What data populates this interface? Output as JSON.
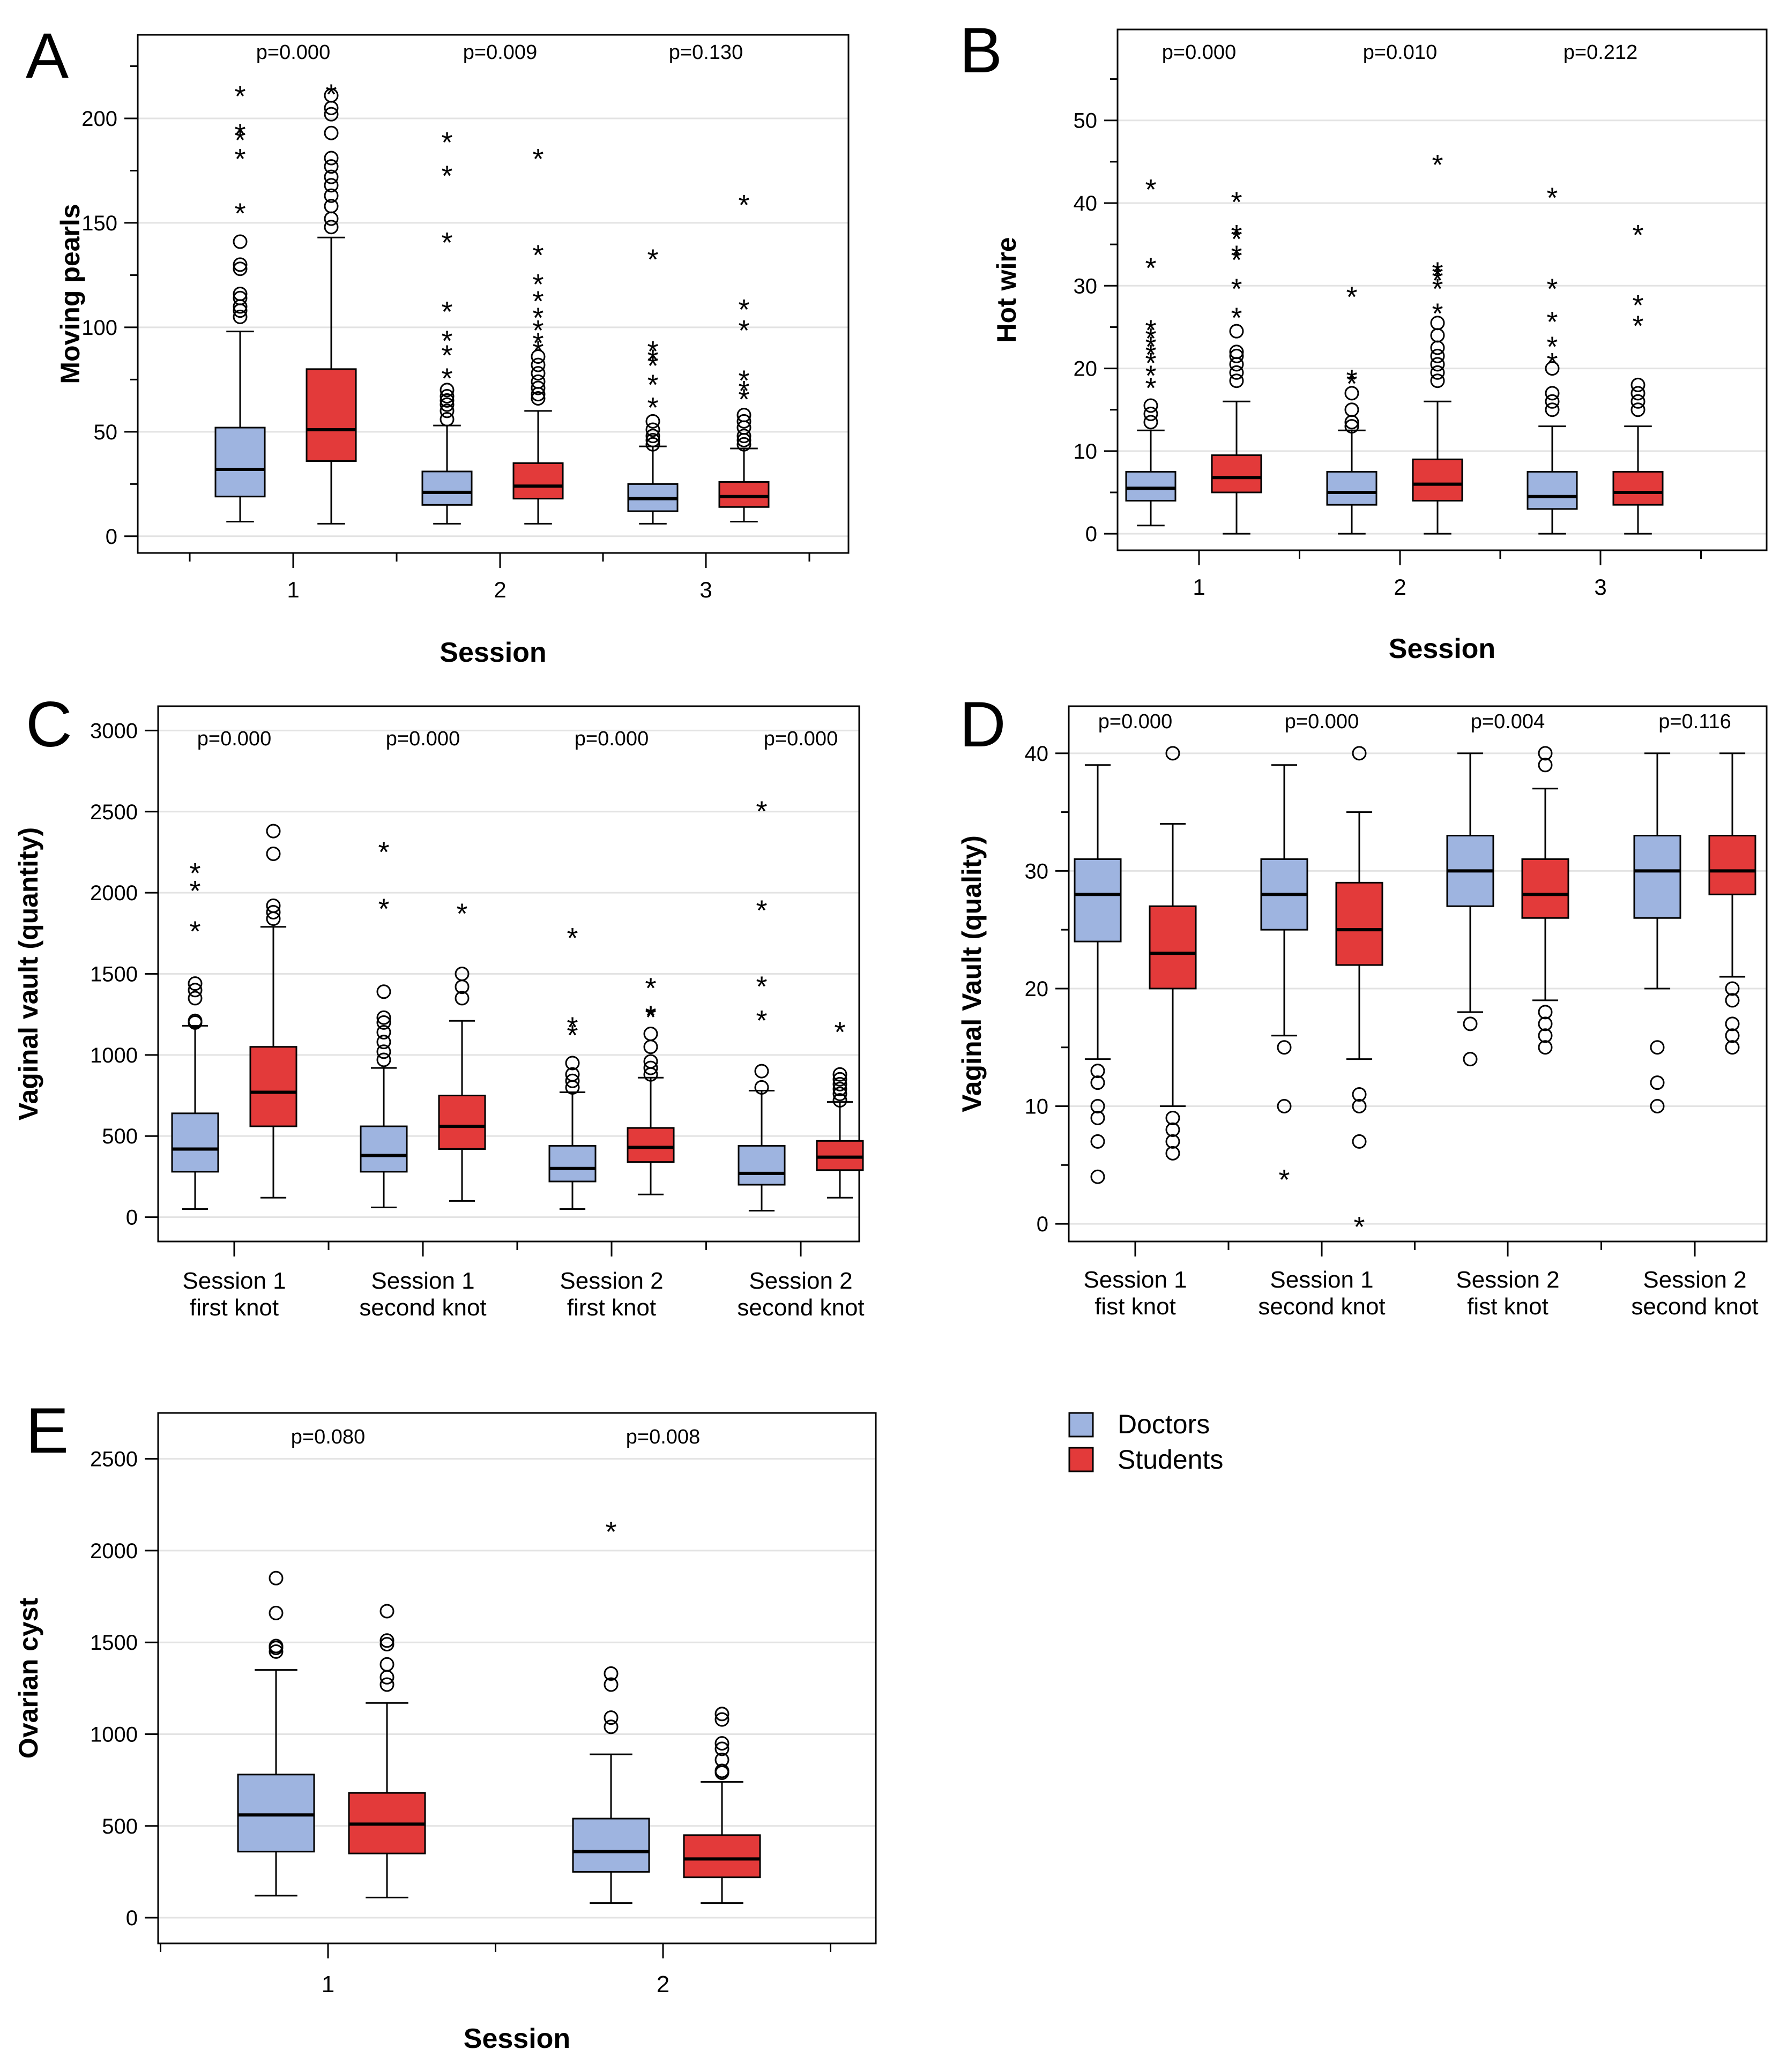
{
  "colors": {
    "doctors": "#9eb4e0",
    "students": "#e33a3a",
    "stroke": "#000000",
    "grid": "#e3e3e3"
  },
  "legend": {
    "items": [
      {
        "label": "Doctors",
        "color": "#9eb4e0"
      },
      {
        "label": "Students",
        "color": "#e33a3a"
      }
    ]
  },
  "chart_data": [
    {
      "panel": "A",
      "type": "boxplot",
      "ylabel": "Moving pearls",
      "xlabel": "Session",
      "ylim": [
        -8,
        240
      ],
      "yticks": [
        0,
        50,
        100,
        150,
        200
      ],
      "yminor": [
        25,
        75,
        125,
        175,
        225
      ],
      "grid": true,
      "categories": [
        "1",
        "2",
        "3"
      ],
      "pvalues": [
        "p=0.000",
        "p=0.009",
        "p=0.130"
      ],
      "boxes": [
        {
          "group": "Doctors",
          "cat": 0,
          "lo": 7,
          "q1": 19,
          "med": 32,
          "q3": 52,
          "hi": 98,
          "circles": [
            105,
            108,
            110,
            114,
            116,
            128,
            130,
            141
          ],
          "stars": [
            156,
            182,
            191,
            194,
            212
          ]
        },
        {
          "group": "Students",
          "cat": 0,
          "lo": 6,
          "q1": 36,
          "med": 51,
          "q3": 80,
          "hi": 143,
          "circles": [
            148,
            152,
            158,
            163,
            168,
            172,
            177,
            181,
            193,
            202,
            205,
            211
          ],
          "stars": [
            213
          ]
        },
        {
          "group": "Doctors",
          "cat": 1,
          "lo": 6,
          "q1": 15,
          "med": 21,
          "q3": 31,
          "hi": 53,
          "circles": [
            56,
            60,
            63,
            65,
            67,
            70
          ],
          "stars": [
            77,
            88,
            95,
            109,
            142,
            174,
            190
          ]
        },
        {
          "group": "Students",
          "cat": 1,
          "lo": 6,
          "q1": 18,
          "med": 24,
          "q3": 35,
          "hi": 60,
          "circles": [
            66,
            68,
            71,
            74,
            78,
            82,
            86
          ],
          "stars": [
            90,
            94,
            100,
            106,
            114,
            122,
            136,
            182
          ]
        },
        {
          "group": "Doctors",
          "cat": 2,
          "lo": 6,
          "q1": 12,
          "med": 18,
          "q3": 25,
          "hi": 43,
          "circles": [
            44,
            46,
            48,
            51,
            55
          ],
          "stars": [
            63,
            74,
            83,
            86,
            90,
            134
          ]
        },
        {
          "group": "Students",
          "cat": 2,
          "lo": 7,
          "q1": 14,
          "med": 19,
          "q3": 26,
          "hi": 42,
          "circles": [
            44,
            46,
            48,
            52,
            55,
            58
          ],
          "stars": [
            67,
            71,
            76,
            100,
            110,
            160
          ]
        }
      ]
    },
    {
      "panel": "B",
      "type": "boxplot",
      "ylabel": "Hot wire",
      "xlabel": "Session",
      "ylim": [
        -2,
        61
      ],
      "yticks": [
        0,
        10,
        20,
        30,
        40,
        50
      ],
      "yminor": [
        5,
        15,
        25,
        35,
        45,
        55
      ],
      "grid": true,
      "categories": [
        "1",
        "2",
        "3"
      ],
      "pvalues": [
        "p=0.000",
        "p=0.010",
        "p=0.212"
      ],
      "boxes": [
        {
          "group": "Doctors",
          "cat": 0,
          "lo": 1,
          "q1": 4,
          "med": 5.5,
          "q3": 7.5,
          "hi": 12.5,
          "circles": [
            13.5,
            14.5,
            15.5
          ],
          "stars": [
            18,
            19.5,
            21,
            22,
            23,
            24,
            25,
            32.5,
            42
          ]
        },
        {
          "group": "Students",
          "cat": 0,
          "lo": 0,
          "q1": 5,
          "med": 6.8,
          "q3": 9.5,
          "hi": 16,
          "circles": [
            18.5,
            19.5,
            20.5,
            21.5,
            22,
            24.5
          ],
          "stars": [
            26.5,
            30,
            33.5,
            34,
            36,
            36.5,
            40.5
          ]
        },
        {
          "group": "Doctors",
          "cat": 1,
          "lo": 0,
          "q1": 3.5,
          "med": 5,
          "q3": 7.5,
          "hi": 12.5,
          "circles": [
            13,
            13.5,
            15,
            17
          ],
          "stars": [
            18.5,
            29,
            19
          ]
        },
        {
          "group": "Students",
          "cat": 1,
          "lo": 0,
          "q1": 4,
          "med": 6,
          "q3": 9,
          "hi": 16,
          "circles": [
            18.5,
            19.5,
            20.5,
            21.5,
            22.5,
            24,
            25.5
          ],
          "stars": [
            27,
            30,
            31,
            31.5,
            32,
            45
          ]
        },
        {
          "group": "Doctors",
          "cat": 2,
          "lo": 0,
          "q1": 3,
          "med": 4.5,
          "q3": 7.5,
          "hi": 13,
          "circles": [
            15,
            16,
            17,
            20
          ],
          "stars": [
            21,
            23,
            26,
            30,
            41
          ]
        },
        {
          "group": "Students",
          "cat": 2,
          "lo": 0,
          "q1": 3.5,
          "med": 5,
          "q3": 7.5,
          "hi": 13,
          "circles": [
            15,
            16,
            17,
            18
          ],
          "stars": [
            25.5,
            28,
            36.5
          ]
        }
      ]
    },
    {
      "panel": "C",
      "type": "boxplot",
      "ylabel": "Vaginal vault (quantity)",
      "xlabel": "",
      "ylim": [
        -150,
        3150
      ],
      "yticks": [
        0,
        500,
        1000,
        1500,
        2000,
        2500,
        3000
      ],
      "yminor": [],
      "grid": true,
      "categories": [
        "Session 1\nfirst knot",
        "Session 1\nsecond knot",
        "Session 2\nfirst knot",
        "Session 2\nsecond knot"
      ],
      "pvalues": [
        "p=0.000",
        "p=0.000",
        "p=0.000",
        "p=0.000"
      ],
      "boxes": [
        {
          "group": "Doctors",
          "cat": 0,
          "lo": 50,
          "q1": 280,
          "med": 420,
          "q3": 640,
          "hi": 1180,
          "circles": [
            1200,
            1210,
            1350,
            1400,
            1440
          ],
          "stars": [
            1780,
            2030,
            2140
          ]
        },
        {
          "group": "Students",
          "cat": 0,
          "lo": 120,
          "q1": 560,
          "med": 770,
          "q3": 1050,
          "hi": 1790,
          "circles": [
            1840,
            1880,
            1920,
            2240,
            2380
          ],
          "stars": []
        },
        {
          "group": "Doctors",
          "cat": 1,
          "lo": 60,
          "q1": 280,
          "med": 380,
          "q3": 560,
          "hi": 920,
          "circles": [
            970,
            1020,
            1080,
            1140,
            1200,
            1230,
            1390
          ],
          "stars": [
            1920,
            2270
          ]
        },
        {
          "group": "Students",
          "cat": 1,
          "lo": 100,
          "q1": 420,
          "med": 560,
          "q3": 750,
          "hi": 1210,
          "circles": [
            1350,
            1420,
            1500
          ],
          "stars": [
            1890
          ]
        },
        {
          "group": "Doctors",
          "cat": 2,
          "lo": 50,
          "q1": 220,
          "med": 300,
          "q3": 440,
          "hi": 770,
          "circles": [
            800,
            840,
            880,
            950
          ],
          "stars": [
            1140,
            1190,
            1740
          ]
        },
        {
          "group": "Students",
          "cat": 2,
          "lo": 140,
          "q1": 340,
          "med": 430,
          "q3": 550,
          "hi": 860,
          "circles": [
            880,
            920,
            960,
            1050,
            1130
          ],
          "stars": [
            1250,
            1260,
            1430
          ]
        },
        {
          "group": "Doctors",
          "cat": 3,
          "lo": 40,
          "q1": 200,
          "med": 270,
          "q3": 440,
          "hi": 780,
          "circles": [
            800,
            900
          ],
          "stars": [
            1230,
            1440,
            1910,
            2520
          ]
        },
        {
          "group": "Students",
          "cat": 3,
          "lo": 120,
          "q1": 290,
          "med": 370,
          "q3": 470,
          "hi": 710,
          "circles": [
            720,
            760,
            790,
            820,
            850,
            880
          ],
          "stars": [
            1160
          ]
        }
      ]
    },
    {
      "panel": "D",
      "type": "boxplot",
      "ylabel": "Vaginal Vault (quality)",
      "xlabel": "",
      "ylim": [
        -1.5,
        44
      ],
      "yticks": [
        0,
        10,
        20,
        30,
        40
      ],
      "yminor": [
        5,
        15,
        25,
        35
      ],
      "grid": true,
      "categories": [
        "Session 1\nfist knot",
        "Session 1\nsecond knot",
        "Session 2\nfist knot",
        "Session 2\nsecond knot"
      ],
      "pvalues": [
        "p=0.000",
        "p=0.000",
        "p=0.004",
        "p=0.116"
      ],
      "boxes": [
        {
          "group": "Doctors",
          "cat": 0,
          "lo": 14,
          "q1": 24,
          "med": 28,
          "q3": 31,
          "hi": 39,
          "circles": [
            4,
            7,
            9,
            10,
            12,
            13
          ],
          "stars": []
        },
        {
          "group": "Students",
          "cat": 0,
          "lo": 10,
          "q1": 20,
          "med": 23,
          "q3": 27,
          "hi": 34,
          "circles": [
            6,
            7,
            8,
            9,
            40
          ],
          "stars": []
        },
        {
          "group": "Doctors",
          "cat": 1,
          "lo": 16,
          "q1": 25,
          "med": 28,
          "q3": 31,
          "hi": 39,
          "circles": [
            10,
            15
          ],
          "stars": [
            4
          ]
        },
        {
          "group": "Students",
          "cat": 1,
          "lo": 14,
          "q1": 22,
          "med": 25,
          "q3": 29,
          "hi": 35,
          "circles": [
            7,
            10,
            11,
            40
          ],
          "stars": [
            0
          ]
        },
        {
          "group": "Doctors",
          "cat": 2,
          "lo": 18,
          "q1": 27,
          "med": 30,
          "q3": 33,
          "hi": 40,
          "circles": [
            14,
            17
          ],
          "stars": []
        },
        {
          "group": "Students",
          "cat": 2,
          "lo": 19,
          "q1": 26,
          "med": 28,
          "q3": 31,
          "hi": 37,
          "circles": [
            15,
            16,
            17,
            18,
            39,
            40
          ],
          "stars": []
        },
        {
          "group": "Doctors",
          "cat": 3,
          "lo": 20,
          "q1": 26,
          "med": 30,
          "q3": 33,
          "hi": 40,
          "circles": [
            10,
            12,
            15
          ],
          "stars": []
        },
        {
          "group": "Students",
          "cat": 3,
          "lo": 21,
          "q1": 28,
          "med": 30,
          "q3": 33,
          "hi": 40,
          "circles": [
            15,
            16,
            17,
            19,
            20
          ],
          "stars": []
        }
      ]
    },
    {
      "panel": "E",
      "type": "boxplot",
      "ylabel": "Ovarian cyst",
      "xlabel": "Session",
      "ylim": [
        -140,
        2750
      ],
      "yticks": [
        0,
        500,
        1000,
        1500,
        2000,
        2500
      ],
      "yminor": [],
      "grid": true,
      "categories": [
        "1",
        "2"
      ],
      "pvalues": [
        "p=0.080",
        "p=0.008"
      ],
      "boxes": [
        {
          "group": "Doctors",
          "cat": 0,
          "lo": 120,
          "q1": 360,
          "med": 560,
          "q3": 780,
          "hi": 1350,
          "circles": [
            1450,
            1470,
            1480,
            1660,
            1850
          ],
          "stars": []
        },
        {
          "group": "Students",
          "cat": 0,
          "lo": 110,
          "q1": 350,
          "med": 510,
          "q3": 680,
          "hi": 1170,
          "circles": [
            1270,
            1310,
            1380,
            1490,
            1510,
            1670
          ],
          "stars": []
        },
        {
          "group": "Doctors",
          "cat": 1,
          "lo": 80,
          "q1": 250,
          "med": 360,
          "q3": 540,
          "hi": 890,
          "circles": [
            1040,
            1090,
            1270,
            1330
          ],
          "stars": [
            2120
          ]
        },
        {
          "group": "Students",
          "cat": 1,
          "lo": 80,
          "q1": 220,
          "med": 320,
          "q3": 450,
          "hi": 740,
          "circles": [
            790,
            800,
            860,
            920,
            950,
            1080,
            1110
          ],
          "stars": []
        }
      ]
    }
  ]
}
